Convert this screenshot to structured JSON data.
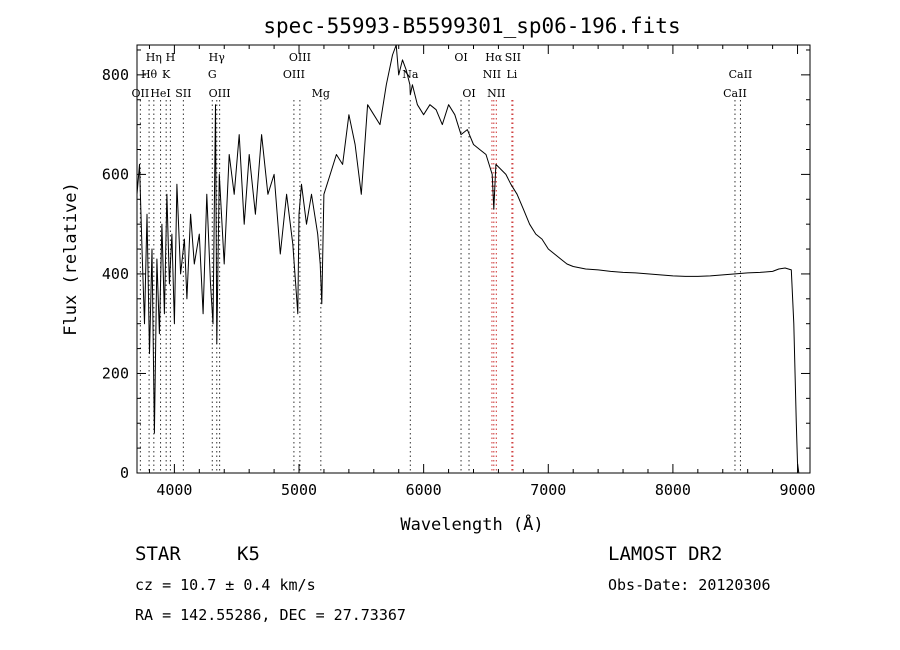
{
  "chart_data": {
    "type": "line",
    "title": "spec-55993-B5599301_sp06-196.fits",
    "xlabel": "Wavelength (Å)",
    "ylabel": "Flux (relative)",
    "xlim": [
      3700,
      9100
    ],
    "ylim": [
      0,
      860
    ],
    "xticks": [
      4000,
      5000,
      6000,
      7000,
      8000,
      9000
    ],
    "yticks": [
      0,
      200,
      400,
      600,
      800
    ],
    "grid": false,
    "legend": "none",
    "series": [
      {
        "x": [
          3700,
          3720,
          3740,
          3760,
          3780,
          3800,
          3820,
          3840,
          3860,
          3880,
          3900,
          3920,
          3940,
          3960,
          3980,
          4000,
          4020,
          4050,
          4080,
          4100,
          4130,
          4160,
          4200,
          4230,
          4260,
          4290,
          4310,
          4330,
          4340,
          4360,
          4400,
          4440,
          4480,
          4520,
          4560,
          4600,
          4650,
          4700,
          4750,
          4800,
          4850,
          4900,
          4950,
          4990,
          5000,
          5020,
          5060,
          5100,
          5150,
          5170,
          5183,
          5200,
          5250,
          5300,
          5350,
          5400,
          5450,
          5500,
          5550,
          5600,
          5650,
          5700,
          5750,
          5780,
          5800,
          5830,
          5860,
          5890,
          5893,
          5910,
          5950,
          6000,
          6050,
          6100,
          6150,
          6200,
          6250,
          6300,
          6350,
          6400,
          6450,
          6500,
          6550,
          6563,
          6580,
          6620,
          6660,
          6700,
          6750,
          6800,
          6850,
          6900,
          6950,
          7000,
          7050,
          7100,
          7150,
          7200,
          7300,
          7400,
          7500,
          7600,
          7700,
          7800,
          7900,
          8000,
          8100,
          8200,
          8300,
          8400,
          8500,
          8600,
          8700,
          8800,
          8850,
          8900,
          8950,
          8970,
          8990,
          9000,
          9010
        ],
        "y": [
          560,
          620,
          450,
          300,
          520,
          240,
          450,
          80,
          430,
          280,
          500,
          320,
          560,
          380,
          480,
          300,
          580,
          400,
          470,
          350,
          520,
          420,
          480,
          320,
          560,
          380,
          300,
          740,
          260,
          600,
          420,
          640,
          560,
          680,
          500,
          640,
          520,
          680,
          560,
          600,
          440,
          560,
          460,
          320,
          520,
          580,
          500,
          560,
          480,
          420,
          340,
          560,
          600,
          640,
          620,
          720,
          660,
          560,
          740,
          720,
          700,
          780,
          840,
          860,
          800,
          830,
          810,
          780,
          760,
          780,
          740,
          720,
          740,
          730,
          700,
          740,
          720,
          680,
          690,
          660,
          650,
          640,
          600,
          530,
          620,
          610,
          600,
          580,
          560,
          530,
          500,
          480,
          470,
          450,
          440,
          430,
          420,
          415,
          410,
          408,
          405,
          403,
          402,
          400,
          398,
          396,
          395,
          395,
          396,
          398,
          400,
          402,
          403,
          405,
          410,
          412,
          408,
          300,
          100,
          20,
          0
        ]
      }
    ],
    "spectral_lines": [
      {
        "label": "Hη",
        "x": 3835,
        "row": 1
      },
      {
        "label": "H",
        "x": 3968,
        "row": 1
      },
      {
        "label": "Hθ",
        "x": 3797,
        "row": 2
      },
      {
        "label": "K",
        "x": 3934,
        "row": 2
      },
      {
        "label": "OII",
        "x": 3727,
        "row": 3
      },
      {
        "label": "HeI",
        "x": 3889,
        "row": 3
      },
      {
        "label": "SII",
        "x": 4072,
        "row": 3
      },
      {
        "label": "Hγ",
        "x": 4340,
        "row": 1
      },
      {
        "label": "G",
        "x": 4304,
        "row": 2
      },
      {
        "label": "OIII",
        "x": 4363,
        "row": 3
      },
      {
        "label": "OIII",
        "x": 5007,
        "row": 1
      },
      {
        "label": "OIII",
        "x": 4959,
        "row": 2
      },
      {
        "label": "Mg",
        "x": 5175,
        "row": 3
      },
      {
        "label": "Na",
        "x": 5893,
        "row": 2
      },
      {
        "label": "OI",
        "x": 6300,
        "row": 1
      },
      {
        "label": "OI",
        "x": 6364,
        "row": 3
      },
      {
        "label": "Hα",
        "x": 6563,
        "row": 1
      },
      {
        "label": "SII",
        "x": 6716,
        "row": 1
      },
      {
        "label": "NII",
        "x": 6548,
        "row": 2
      },
      {
        "label": "Li",
        "x": 6708,
        "row": 2
      },
      {
        "label": "NII",
        "x": 6583,
        "row": 3
      },
      {
        "label": "CaII",
        "x": 8542,
        "row": 2
      },
      {
        "label": "CaII",
        "x": 8498,
        "row": 3
      }
    ]
  },
  "info": {
    "class": "STAR",
    "subclass": "K5",
    "cz": "cz = 10.7 ± 0.4 km/s",
    "coords": "RA = 142.55286, DEC =  27.73367",
    "survey": "LAMOST DR2",
    "obs_date": "Obs-Date: 20120306"
  }
}
